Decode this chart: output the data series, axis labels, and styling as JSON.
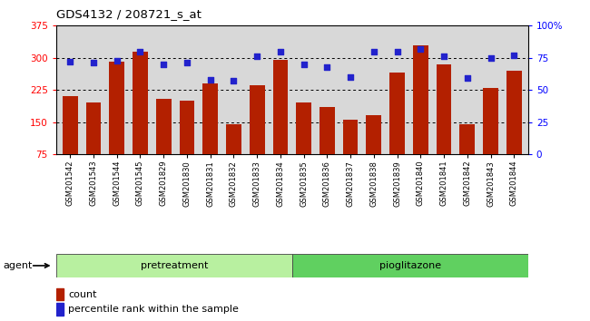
{
  "title": "GDS4132 / 208721_s_at",
  "samples": [
    "GSM201542",
    "GSM201543",
    "GSM201544",
    "GSM201545",
    "GSM201829",
    "GSM201830",
    "GSM201831",
    "GSM201832",
    "GSM201833",
    "GSM201834",
    "GSM201835",
    "GSM201836",
    "GSM201837",
    "GSM201838",
    "GSM201839",
    "GSM201840",
    "GSM201841",
    "GSM201842",
    "GSM201843",
    "GSM201844"
  ],
  "counts": [
    210,
    195,
    290,
    315,
    205,
    200,
    240,
    145,
    235,
    295,
    195,
    185,
    155,
    165,
    265,
    330,
    285,
    145,
    230,
    270
  ],
  "percentiles": [
    72,
    71,
    73,
    80,
    70,
    71,
    58,
    57,
    76,
    80,
    70,
    68,
    60,
    80,
    80,
    82,
    76,
    59,
    75,
    77
  ],
  "group1_label": "pretreatment",
  "group1_count": 10,
  "group2_label": "pioglitazone",
  "group2_count": 10,
  "bar_color": "#b32000",
  "dot_color": "#2222cc",
  "ylim_left": [
    75,
    375
  ],
  "ylim_right": [
    0,
    100
  ],
  "yticks_left": [
    75,
    150,
    225,
    300,
    375
  ],
  "yticks_right": [
    0,
    25,
    50,
    75,
    100
  ],
  "agent_label": "agent",
  "legend_count_label": "count",
  "legend_pct_label": "percentile rank within the sample",
  "plot_bg_color": "#d8d8d8",
  "fig_bg_color": "#ffffff",
  "group1_color": "#b8f0a0",
  "group2_color": "#60d060"
}
